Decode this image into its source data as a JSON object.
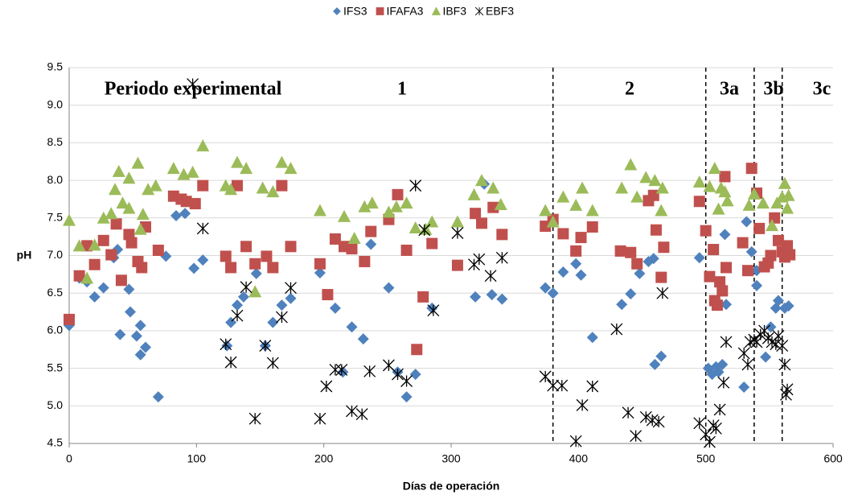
{
  "chart_data": {
    "type": "scatter",
    "x_label": "Días de operación",
    "y_label": "pH",
    "xlim": [
      0,
      600
    ],
    "xticks": [
      0,
      100,
      200,
      300,
      400,
      500,
      600
    ],
    "ylim": [
      4.5,
      9.5
    ],
    "yticks": [
      4.5,
      {
        "value": 5,
        "label": "5.0"
      },
      5.5,
      {
        "value": 6,
        "label": "6.0"
      },
      6.5,
      {
        "value": 7,
        "label": "7.0"
      },
      7.5,
      {
        "value": 8,
        "label": "8.0"
      },
      8.5,
      {
        "value": 9,
        "label": "9.0"
      },
      9.5
    ],
    "grid": true,
    "legend": "top",
    "periods": [
      "Periodo experimental",
      "1",
      "2",
      "3a",
      "3b",
      "3c"
    ],
    "period_boundaries": [
      380,
      500,
      538,
      560
    ],
    "series": [
      {
        "name": "IFS3",
        "color": "#4f81bd",
        "marker": "diamond",
        "x": [
          0,
          8,
          14,
          20,
          27,
          35,
          38,
          40,
          47,
          48,
          53,
          56,
          56,
          60,
          70,
          76,
          84,
          91,
          98,
          105,
          124,
          127,
          132,
          137,
          147,
          154,
          160,
          167,
          174,
          197,
          209,
          215,
          222,
          231,
          237,
          251,
          258,
          265,
          272,
          285,
          319,
          326,
          332,
          340,
          374,
          380,
          388,
          398,
          402,
          411,
          434,
          441,
          448,
          455,
          459,
          460,
          465,
          495,
          502,
          505,
          508,
          510,
          513,
          515,
          516,
          530,
          532,
          536,
          540,
          540,
          547,
          551,
          555,
          557,
          562,
          565
        ],
        "values": [
          6.07,
          6.7,
          6.65,
          6.45,
          6.57,
          6.97,
          7.08,
          5.95,
          6.55,
          6.25,
          5.93,
          5.68,
          6.07,
          5.78,
          5.12,
          6.99,
          7.53,
          7.56,
          6.83,
          6.94,
          5.8,
          6.11,
          6.34,
          6.45,
          6.76,
          5.8,
          6.11,
          6.34,
          6.43,
          6.77,
          6.3,
          5.45,
          6.05,
          5.89,
          7.15,
          6.57,
          5.45,
          5.12,
          5.42,
          6.3,
          6.45,
          7.95,
          6.48,
          6.42,
          6.57,
          6.5,
          6.78,
          6.89,
          6.74,
          5.91,
          6.35,
          6.49,
          6.76,
          6.92,
          6.96,
          5.55,
          5.66,
          6.97,
          5.5,
          5.42,
          5.52,
          5.45,
          5.55,
          7.28,
          6.35,
          5.25,
          7.45,
          7.05,
          6.6,
          6.8,
          5.65,
          6.05,
          6.3,
          6.4,
          6.3,
          6.33
        ]
      },
      {
        "name": "IFAFA3",
        "color": "#c0504d",
        "marker": "square",
        "x": [
          0,
          8,
          14,
          20,
          27,
          33,
          37,
          41,
          47,
          49,
          54,
          57,
          60,
          70,
          82,
          88,
          92,
          99,
          105,
          123,
          127,
          132,
          139,
          146,
          155,
          160,
          167,
          174,
          197,
          203,
          209,
          216,
          222,
          232,
          237,
          251,
          258,
          265,
          273,
          278,
          285,
          305,
          319,
          324,
          333,
          340,
          374,
          380,
          388,
          398,
          402,
          411,
          433,
          441,
          446,
          455,
          459,
          461,
          465,
          467,
          495,
          500,
          503,
          506,
          507,
          509,
          511,
          513,
          515,
          516,
          529,
          533,
          536,
          540,
          542,
          546,
          549,
          551,
          554,
          557,
          560,
          562,
          564,
          566
        ],
        "values": [
          6.15,
          6.73,
          7.13,
          6.88,
          7.2,
          7.01,
          7.42,
          6.67,
          7.28,
          7.17,
          6.92,
          6.84,
          7.38,
          7.07,
          7.79,
          7.75,
          7.72,
          7.69,
          7.93,
          6.99,
          6.84,
          7.93,
          7.12,
          6.89,
          6.99,
          6.84,
          7.93,
          7.12,
          6.89,
          6.48,
          7.22,
          7.12,
          7.09,
          6.92,
          7.32,
          7.48,
          7.81,
          7.07,
          5.75,
          6.45,
          7.16,
          6.87,
          7.56,
          7.43,
          7.64,
          7.28,
          7.39,
          7.48,
          7.29,
          7.06,
          7.24,
          7.38,
          7.06,
          7.04,
          6.89,
          7.73,
          7.8,
          7.34,
          6.71,
          7.11,
          7.72,
          7.33,
          6.72,
          7.08,
          6.4,
          6.34,
          6.65,
          6.53,
          8.05,
          6.84,
          7.17,
          6.8,
          8.16,
          7.83,
          7.36,
          6.85,
          6.9,
          7.0,
          7.5,
          7.2,
          7.05,
          6.98,
          7.13,
          7.01
        ]
      },
      {
        "name": "IBF3",
        "color": "#9bbb59",
        "marker": "triangle",
        "x": [
          0,
          8,
          14,
          20,
          27,
          33,
          36,
          39,
          42,
          47,
          47,
          54,
          56,
          58,
          62,
          68,
          82,
          90,
          97,
          105,
          123,
          127,
          132,
          139,
          146,
          152,
          160,
          167,
          174,
          197,
          216,
          224,
          232,
          238,
          251,
          257,
          265,
          272,
          280,
          285,
          305,
          318,
          324,
          333,
          339,
          374,
          380,
          388,
          398,
          403,
          411,
          434,
          441,
          446,
          453,
          460,
          466,
          465,
          495,
          503,
          507,
          510,
          512,
          515,
          517,
          534,
          538,
          545,
          552,
          556,
          560,
          562,
          564,
          565
        ],
        "values": [
          7.47,
          7.13,
          6.7,
          7.14,
          7.5,
          7.56,
          7.88,
          8.12,
          7.7,
          8.03,
          7.63,
          8.23,
          7.35,
          7.55,
          7.88,
          7.93,
          8.16,
          8.08,
          8.11,
          8.46,
          7.93,
          7.88,
          8.24,
          8.16,
          6.52,
          7.9,
          7.85,
          8.24,
          8.16,
          7.6,
          7.52,
          7.23,
          7.65,
          7.7,
          7.58,
          7.65,
          7.7,
          7.37,
          7.35,
          7.45,
          7.45,
          7.81,
          8.0,
          7.9,
          7.68,
          7.6,
          7.45,
          7.78,
          7.67,
          7.9,
          7.6,
          7.9,
          8.21,
          7.78,
          8.04,
          8.0,
          7.9,
          7.6,
          7.98,
          7.92,
          8.16,
          7.62,
          7.9,
          7.85,
          7.73,
          7.67,
          7.82,
          7.7,
          7.4,
          7.7,
          7.78,
          7.96,
          7.63,
          7.8
        ]
      },
      {
        "name": "EBF3",
        "color": "#000000",
        "marker": "asterisk",
        "x": [
          97,
          105,
          123,
          127,
          132,
          139,
          146,
          154,
          160,
          167,
          174,
          197,
          202,
          209,
          214,
          222,
          230,
          236,
          251,
          258,
          265,
          272,
          279,
          286,
          305,
          318,
          322,
          331,
          340,
          374,
          380,
          387,
          398,
          403,
          411,
          430,
          439,
          445,
          453,
          458,
          463,
          466,
          495,
          500,
          503,
          506,
          508,
          511,
          514,
          516,
          530,
          533,
          535,
          538,
          540,
          543,
          546,
          549,
          552,
          555,
          557,
          560,
          562,
          563,
          564
        ],
        "values": [
          9.28,
          7.36,
          5.82,
          5.58,
          6.2,
          6.58,
          4.83,
          5.8,
          5.57,
          6.18,
          6.57,
          4.83,
          5.26,
          5.48,
          5.48,
          4.93,
          4.89,
          5.46,
          5.54,
          5.42,
          5.33,
          7.93,
          7.34,
          6.27,
          7.3,
          6.88,
          6.95,
          6.73,
          6.97,
          5.39,
          5.27,
          5.27,
          4.53,
          5.01,
          5.26,
          6.02,
          4.91,
          4.6,
          4.85,
          4.81,
          4.79,
          6.5,
          4.77,
          4.62,
          4.52,
          4.74,
          4.7,
          4.95,
          5.31,
          5.85,
          5.7,
          5.55,
          5.85,
          5.88,
          5.85,
          5.95,
          6.0,
          5.9,
          5.85,
          5.82,
          5.93,
          5.8,
          5.55,
          5.15,
          5.22
        ]
      }
    ]
  }
}
